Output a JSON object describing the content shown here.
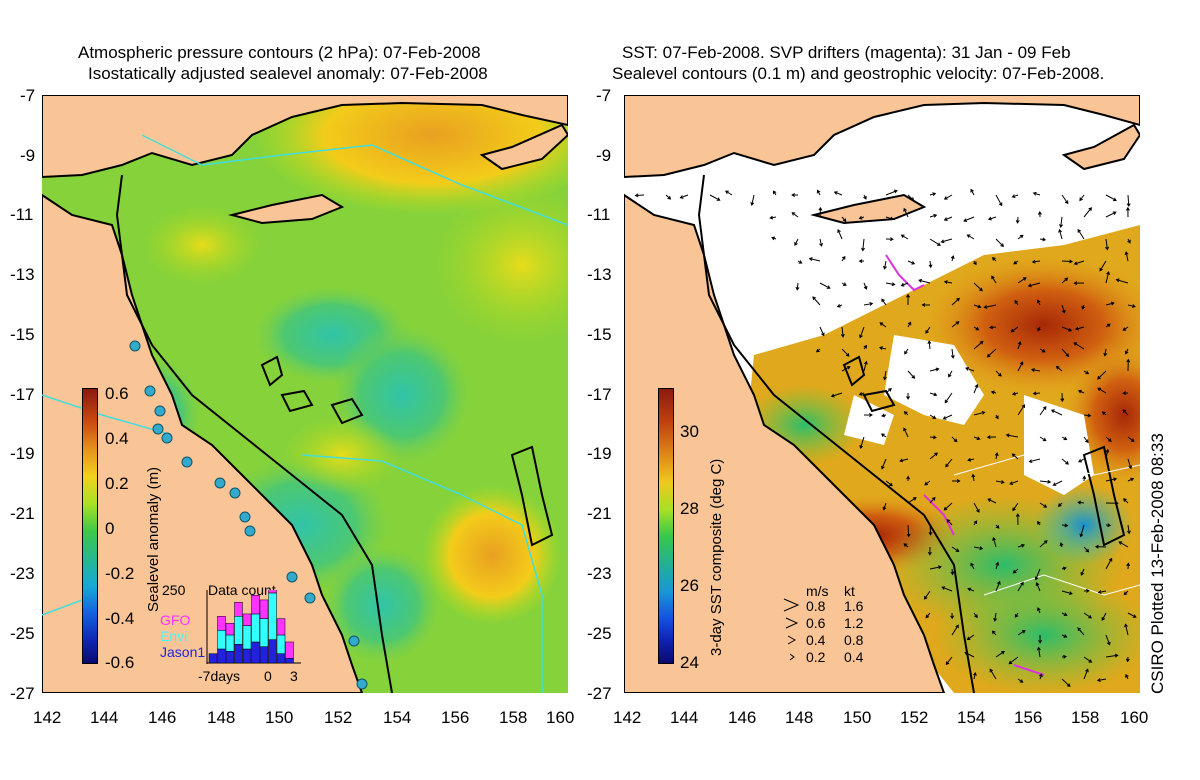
{
  "left_panel": {
    "title_line1": "Atmospheric pressure contours (2 hPa): 07-Feb-2008",
    "title_line2": "Isostatically adjusted sealevel anomaly: 07-Feb-2008",
    "x_ticks": [
      "142",
      "144",
      "146",
      "148",
      "150",
      "152",
      "154",
      "156",
      "158",
      "160"
    ],
    "y_ticks": [
      "-7",
      "-9",
      "-11",
      "-13",
      "-15",
      "-17",
      "-19",
      "-21",
      "-23",
      "-25",
      "-27"
    ],
    "colorbar": {
      "label": "Sealevel anomaly (m)",
      "ticks": [
        "0.6",
        "0.4",
        "0.2",
        "0",
        "-0.2",
        "-0.4",
        "-0.6"
      ],
      "range": [
        -0.6,
        0.6
      ]
    },
    "data_count": {
      "title": "Data count",
      "max_label": "250",
      "x_labels": [
        "-7days",
        "0",
        "3"
      ],
      "legend": [
        {
          "name": "GFO",
          "color": "#ff33ff"
        },
        {
          "name": "Envi",
          "color": "#33ffff"
        },
        {
          "name": "Jason1",
          "color": "#2222dd"
        }
      ],
      "bars": [
        {
          "jason": 20,
          "envi": 0,
          "gfo": 0
        },
        {
          "jason": 30,
          "envi": 40,
          "gfo": 30
        },
        {
          "jason": 25,
          "envi": 35,
          "gfo": 25
        },
        {
          "jason": 40,
          "envi": 60,
          "gfo": 30
        },
        {
          "jason": 30,
          "envi": 50,
          "gfo": 25
        },
        {
          "jason": 45,
          "envi": 60,
          "gfo": 40
        },
        {
          "jason": 35,
          "envi": 60,
          "gfo": 40
        },
        {
          "jason": 50,
          "envi": 100,
          "gfo": 40
        },
        {
          "jason": 20,
          "envi": 40,
          "gfo": 35
        },
        {
          "jason": 10,
          "envi": 0,
          "gfo": 35
        }
      ]
    }
  },
  "right_panel": {
    "title_line1": "SST: 07-Feb-2008. SVP drifters (magenta): 31 Jan - 09 Feb",
    "title_line2": "Sealevel contours (0.1 m) and geostrophic velocity: 07-Feb-2008.",
    "x_ticks": [
      "142",
      "144",
      "146",
      "148",
      "150",
      "152",
      "154",
      "156",
      "158",
      "160"
    ],
    "y_ticks": [
      "-7",
      "-9",
      "-11",
      "-13",
      "-15",
      "-17",
      "-19",
      "-21",
      "-23",
      "-25",
      "-27"
    ],
    "colorbar": {
      "label": "3-day SST composite (deg C)",
      "ticks": [
        "30",
        "28",
        "26",
        "24"
      ],
      "range": [
        24,
        31
      ]
    },
    "velocity_legend": {
      "header_ms": "m/s",
      "header_kt": "kt",
      "rows": [
        {
          "ms": "0.8",
          "kt": "1.6"
        },
        {
          "ms": "0.6",
          "kt": "1.2"
        },
        {
          "ms": "0.4",
          "kt": "0.8"
        },
        {
          "ms": "0.2",
          "kt": "0.4"
        }
      ]
    },
    "credit": "CSIRO Plotted 13-Feb-2008 08:33"
  },
  "colors": {
    "land": "#f9c596",
    "coast": "#000000",
    "pressure_contour": "#44dddd",
    "drifter": "#dd33dd"
  }
}
